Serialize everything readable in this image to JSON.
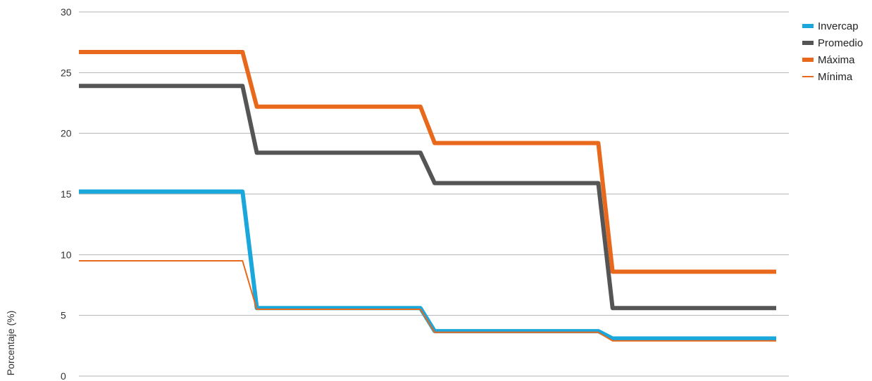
{
  "chart_data": {
    "type": "line",
    "title": "",
    "xlabel": "",
    "ylabel": "Porcentaje (%)",
    "ylim": [
      0,
      30
    ],
    "yticks": [
      0,
      5,
      10,
      15,
      20,
      25,
      30
    ],
    "grid": true,
    "legend_position": "top-right",
    "x": [
      0,
      0.92,
      1,
      1.92,
      2,
      2.92,
      3,
      3.92
    ],
    "series": [
      {
        "name": "Invercap",
        "color": "#1aa7dc",
        "stroke": "thick",
        "values": [
          15.2,
          15.2,
          5.6,
          5.6,
          3.7,
          3.7,
          3.1,
          3.1
        ]
      },
      {
        "name": "Promedio",
        "color": "#555555",
        "stroke": "thick",
        "values": [
          23.9,
          23.9,
          18.4,
          18.4,
          15.9,
          15.9,
          5.6,
          5.6
        ]
      },
      {
        "name": "Máxima",
        "color": "#e8681c",
        "stroke": "thick",
        "values": [
          26.7,
          26.7,
          22.2,
          22.2,
          19.2,
          19.2,
          8.6,
          8.6
        ]
      },
      {
        "name": "Mínima",
        "color": "#e8681c",
        "stroke": "thin",
        "values": [
          9.5,
          9.5,
          5.5,
          5.5,
          3.6,
          3.6,
          2.9,
          2.9
        ]
      }
    ]
  }
}
